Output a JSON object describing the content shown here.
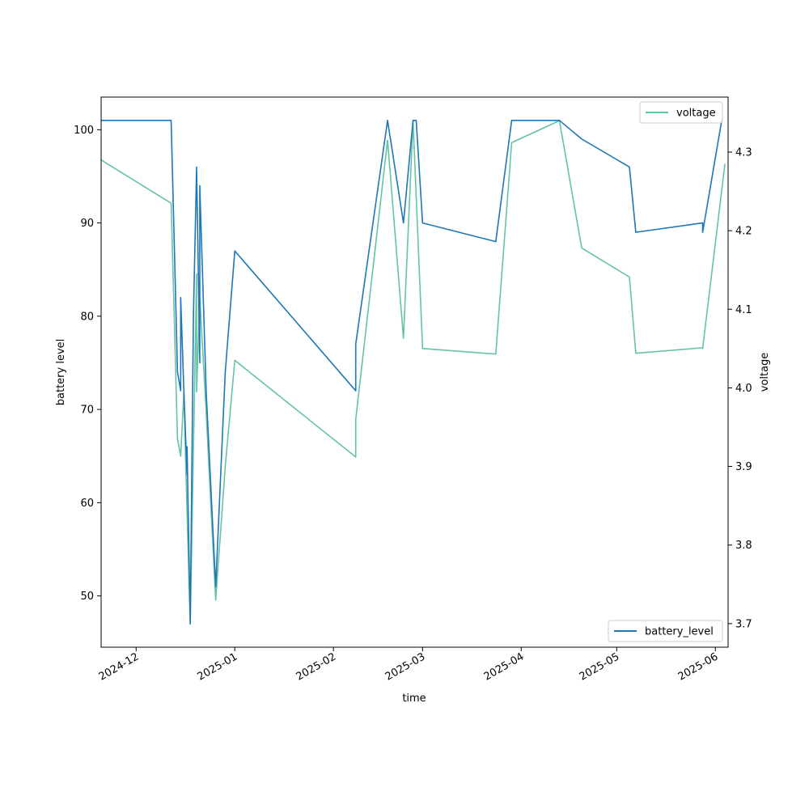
{
  "chart_data": {
    "type": "line",
    "xlabel": "time",
    "ylabel_left": "battery level",
    "ylabel_right": "voltage",
    "x_ticks": [
      "2024-12",
      "2025-01",
      "2025-02",
      "2025-03",
      "2025-04",
      "2025-05",
      "2025-06"
    ],
    "y_left_ticks": [
      "50",
      "60",
      "70",
      "80",
      "90",
      "100"
    ],
    "y_right_ticks": [
      "3.7",
      "3.8",
      "3.9",
      "4.0",
      "4.1",
      "4.2",
      "4.3"
    ],
    "x_range": [
      "2024-11-20",
      "2025-06-05"
    ],
    "y_left_range": [
      44.5,
      103.5
    ],
    "y_right_range": [
      3.67,
      4.37
    ],
    "legend_top_right": "voltage",
    "legend_bottom_right": "battery_level",
    "series": [
      {
        "name": "battery_level",
        "axis": "left",
        "color": "#1f77b4",
        "points": [
          [
            "2024-11-20",
            101
          ],
          [
            "2024-12-12",
            101
          ],
          [
            "2024-12-14",
            74
          ],
          [
            "2024-12-15",
            72
          ],
          [
            "2024-12-15",
            82
          ],
          [
            "2024-12-16",
            72
          ],
          [
            "2024-12-17",
            63
          ],
          [
            "2024-12-17",
            66
          ],
          [
            "2024-12-18",
            47
          ],
          [
            "2024-12-19",
            80
          ],
          [
            "2024-12-20",
            96
          ],
          [
            "2024-12-21",
            75
          ],
          [
            "2024-12-21",
            94
          ],
          [
            "2024-12-23",
            72
          ],
          [
            "2024-12-26",
            51
          ],
          [
            "2024-12-29",
            74
          ],
          [
            "2025-01-01",
            87
          ],
          [
            "2025-02-08",
            72
          ],
          [
            "2025-02-08",
            77
          ],
          [
            "2025-02-18",
            101
          ],
          [
            "2025-02-23",
            90
          ],
          [
            "2025-02-26",
            101
          ],
          [
            "2025-02-27",
            101
          ],
          [
            "2025-03-01",
            90
          ],
          [
            "2025-03-24",
            88
          ],
          [
            "2025-03-29",
            101
          ],
          [
            "2025-04-13",
            101
          ],
          [
            "2025-04-20",
            99
          ],
          [
            "2025-05-05",
            96
          ],
          [
            "2025-05-07",
            89
          ],
          [
            "2025-05-28",
            90
          ],
          [
            "2025-05-28",
            89
          ],
          [
            "2025-06-03",
            101
          ]
        ]
      },
      {
        "name": "voltage",
        "axis": "right",
        "color": "#66c2a5",
        "points": [
          [
            "2024-11-20",
            4.29
          ],
          [
            "2024-12-12",
            4.235
          ],
          [
            "2024-12-14",
            3.935
          ],
          [
            "2024-12-15",
            3.913
          ],
          [
            "2024-12-16",
            3.995
          ],
          [
            "2024-12-17",
            3.84
          ],
          [
            "2024-12-18",
            3.7
          ],
          [
            "2024-12-19",
            3.92
          ],
          [
            "2024-12-20",
            4.145
          ],
          [
            "2024-12-20",
            3.995
          ],
          [
            "2024-12-21",
            4.115
          ],
          [
            "2024-12-23",
            3.97
          ],
          [
            "2024-12-26",
            3.73
          ],
          [
            "2024-12-29",
            3.9
          ],
          [
            "2025-01-01",
            4.035
          ],
          [
            "2025-02-08",
            3.912
          ],
          [
            "2025-02-08",
            3.96
          ],
          [
            "2025-02-18",
            4.315
          ],
          [
            "2025-02-23",
            4.063
          ],
          [
            "2025-02-26",
            4.34
          ],
          [
            "2025-03-01",
            4.05
          ],
          [
            "2025-03-24",
            4.043
          ],
          [
            "2025-03-29",
            4.312
          ],
          [
            "2025-04-13",
            4.34
          ],
          [
            "2025-04-20",
            4.178
          ],
          [
            "2025-05-05",
            4.141
          ],
          [
            "2025-05-07",
            4.044
          ],
          [
            "2025-05-28",
            4.051
          ],
          [
            "2025-05-28",
            4.05
          ],
          [
            "2025-06-04",
            4.285
          ]
        ]
      }
    ]
  }
}
